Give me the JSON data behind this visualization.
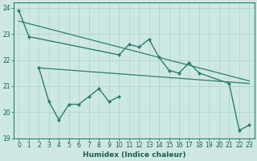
{
  "xlabel": "Humidex (Indice chaleur)",
  "bg_color": "#cde8e4",
  "grid_color": "#a8d0cc",
  "line_color": "#2e7d6e",
  "x_values": [
    0,
    1,
    2,
    3,
    4,
    5,
    6,
    7,
    8,
    9,
    10,
    11,
    12,
    13,
    14,
    15,
    16,
    17,
    18,
    19,
    20,
    21,
    22,
    23
  ],
  "line1_x": [
    0,
    1,
    10,
    11,
    12,
    13,
    14,
    15,
    16,
    17,
    18,
    21,
    22,
    23
  ],
  "line1_y": [
    23.9,
    22.9,
    22.2,
    22.6,
    22.5,
    22.8,
    22.1,
    21.6,
    21.5,
    21.9,
    21.5,
    21.1,
    19.3,
    19.5
  ],
  "line2_x": [
    2,
    3,
    4,
    5,
    6,
    7,
    8,
    9,
    10
  ],
  "line2_y": [
    21.7,
    20.4,
    19.7,
    20.3,
    20.3,
    20.6,
    20.9,
    20.4,
    20.6
  ],
  "trend1_x": [
    0,
    23
  ],
  "trend1_y": [
    23.5,
    21.2
  ],
  "trend2_x": [
    2,
    23
  ],
  "trend2_y": [
    21.7,
    21.1
  ],
  "ylim": [
    19,
    24.2
  ],
  "xlim": [
    -0.5,
    23.5
  ],
  "yticks": [
    19,
    20,
    21,
    22,
    23,
    24
  ],
  "xticks": [
    0,
    1,
    2,
    3,
    4,
    5,
    6,
    7,
    8,
    9,
    10,
    11,
    12,
    13,
    14,
    15,
    16,
    17,
    18,
    19,
    20,
    21,
    22,
    23
  ],
  "tick_fontsize": 5.5,
  "xlabel_fontsize": 6.5,
  "label_color": "#1a5c50"
}
